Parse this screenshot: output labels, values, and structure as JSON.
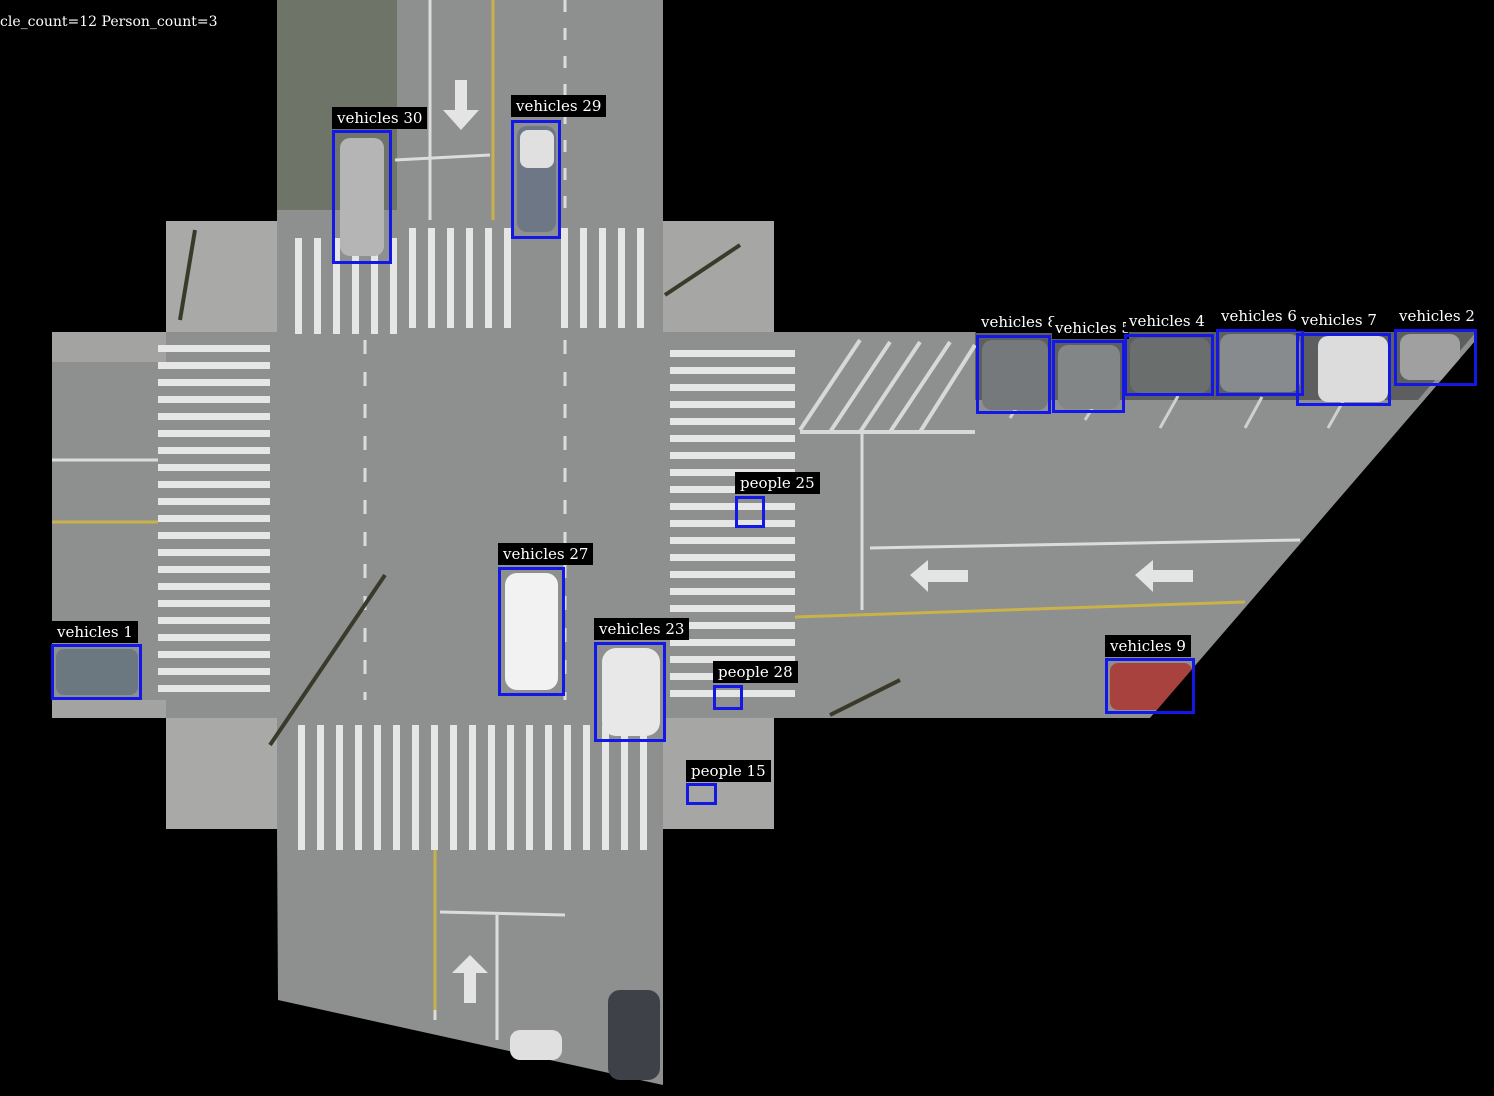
{
  "header": {
    "counter_text": "cle_count=12 Person_count=3"
  },
  "colors": {
    "background": "#000000",
    "box": "#1418e6",
    "label_bg": "#000000",
    "label_text": "#ffffff",
    "road": "#8e8f8f",
    "crosswalk": "#e6e6e6",
    "sidewalk": "#a9a9a7"
  },
  "detections": [
    {
      "label": "vehicles 30",
      "category": "vehicles"
    },
    {
      "label": "vehicles 29",
      "category": "vehicles"
    },
    {
      "label": "vehicles 8",
      "category": "vehicles"
    },
    {
      "label": "vehicles 5",
      "category": "vehicles"
    },
    {
      "label": "vehicles 4",
      "category": "vehicles"
    },
    {
      "label": "vehicles 6",
      "category": "vehicles"
    },
    {
      "label": "vehicles 7",
      "category": "vehicles"
    },
    {
      "label": "vehicles 2",
      "category": "vehicles"
    },
    {
      "label": "people 25",
      "category": "people"
    },
    {
      "label": "vehicles 27",
      "category": "vehicles"
    },
    {
      "label": "vehicles 23",
      "category": "vehicles"
    },
    {
      "label": "people 28",
      "category": "people"
    },
    {
      "label": "vehicles 1",
      "category": "vehicles"
    },
    {
      "label": "people 15",
      "category": "people"
    },
    {
      "label": "vehicles 9",
      "category": "vehicles"
    }
  ]
}
